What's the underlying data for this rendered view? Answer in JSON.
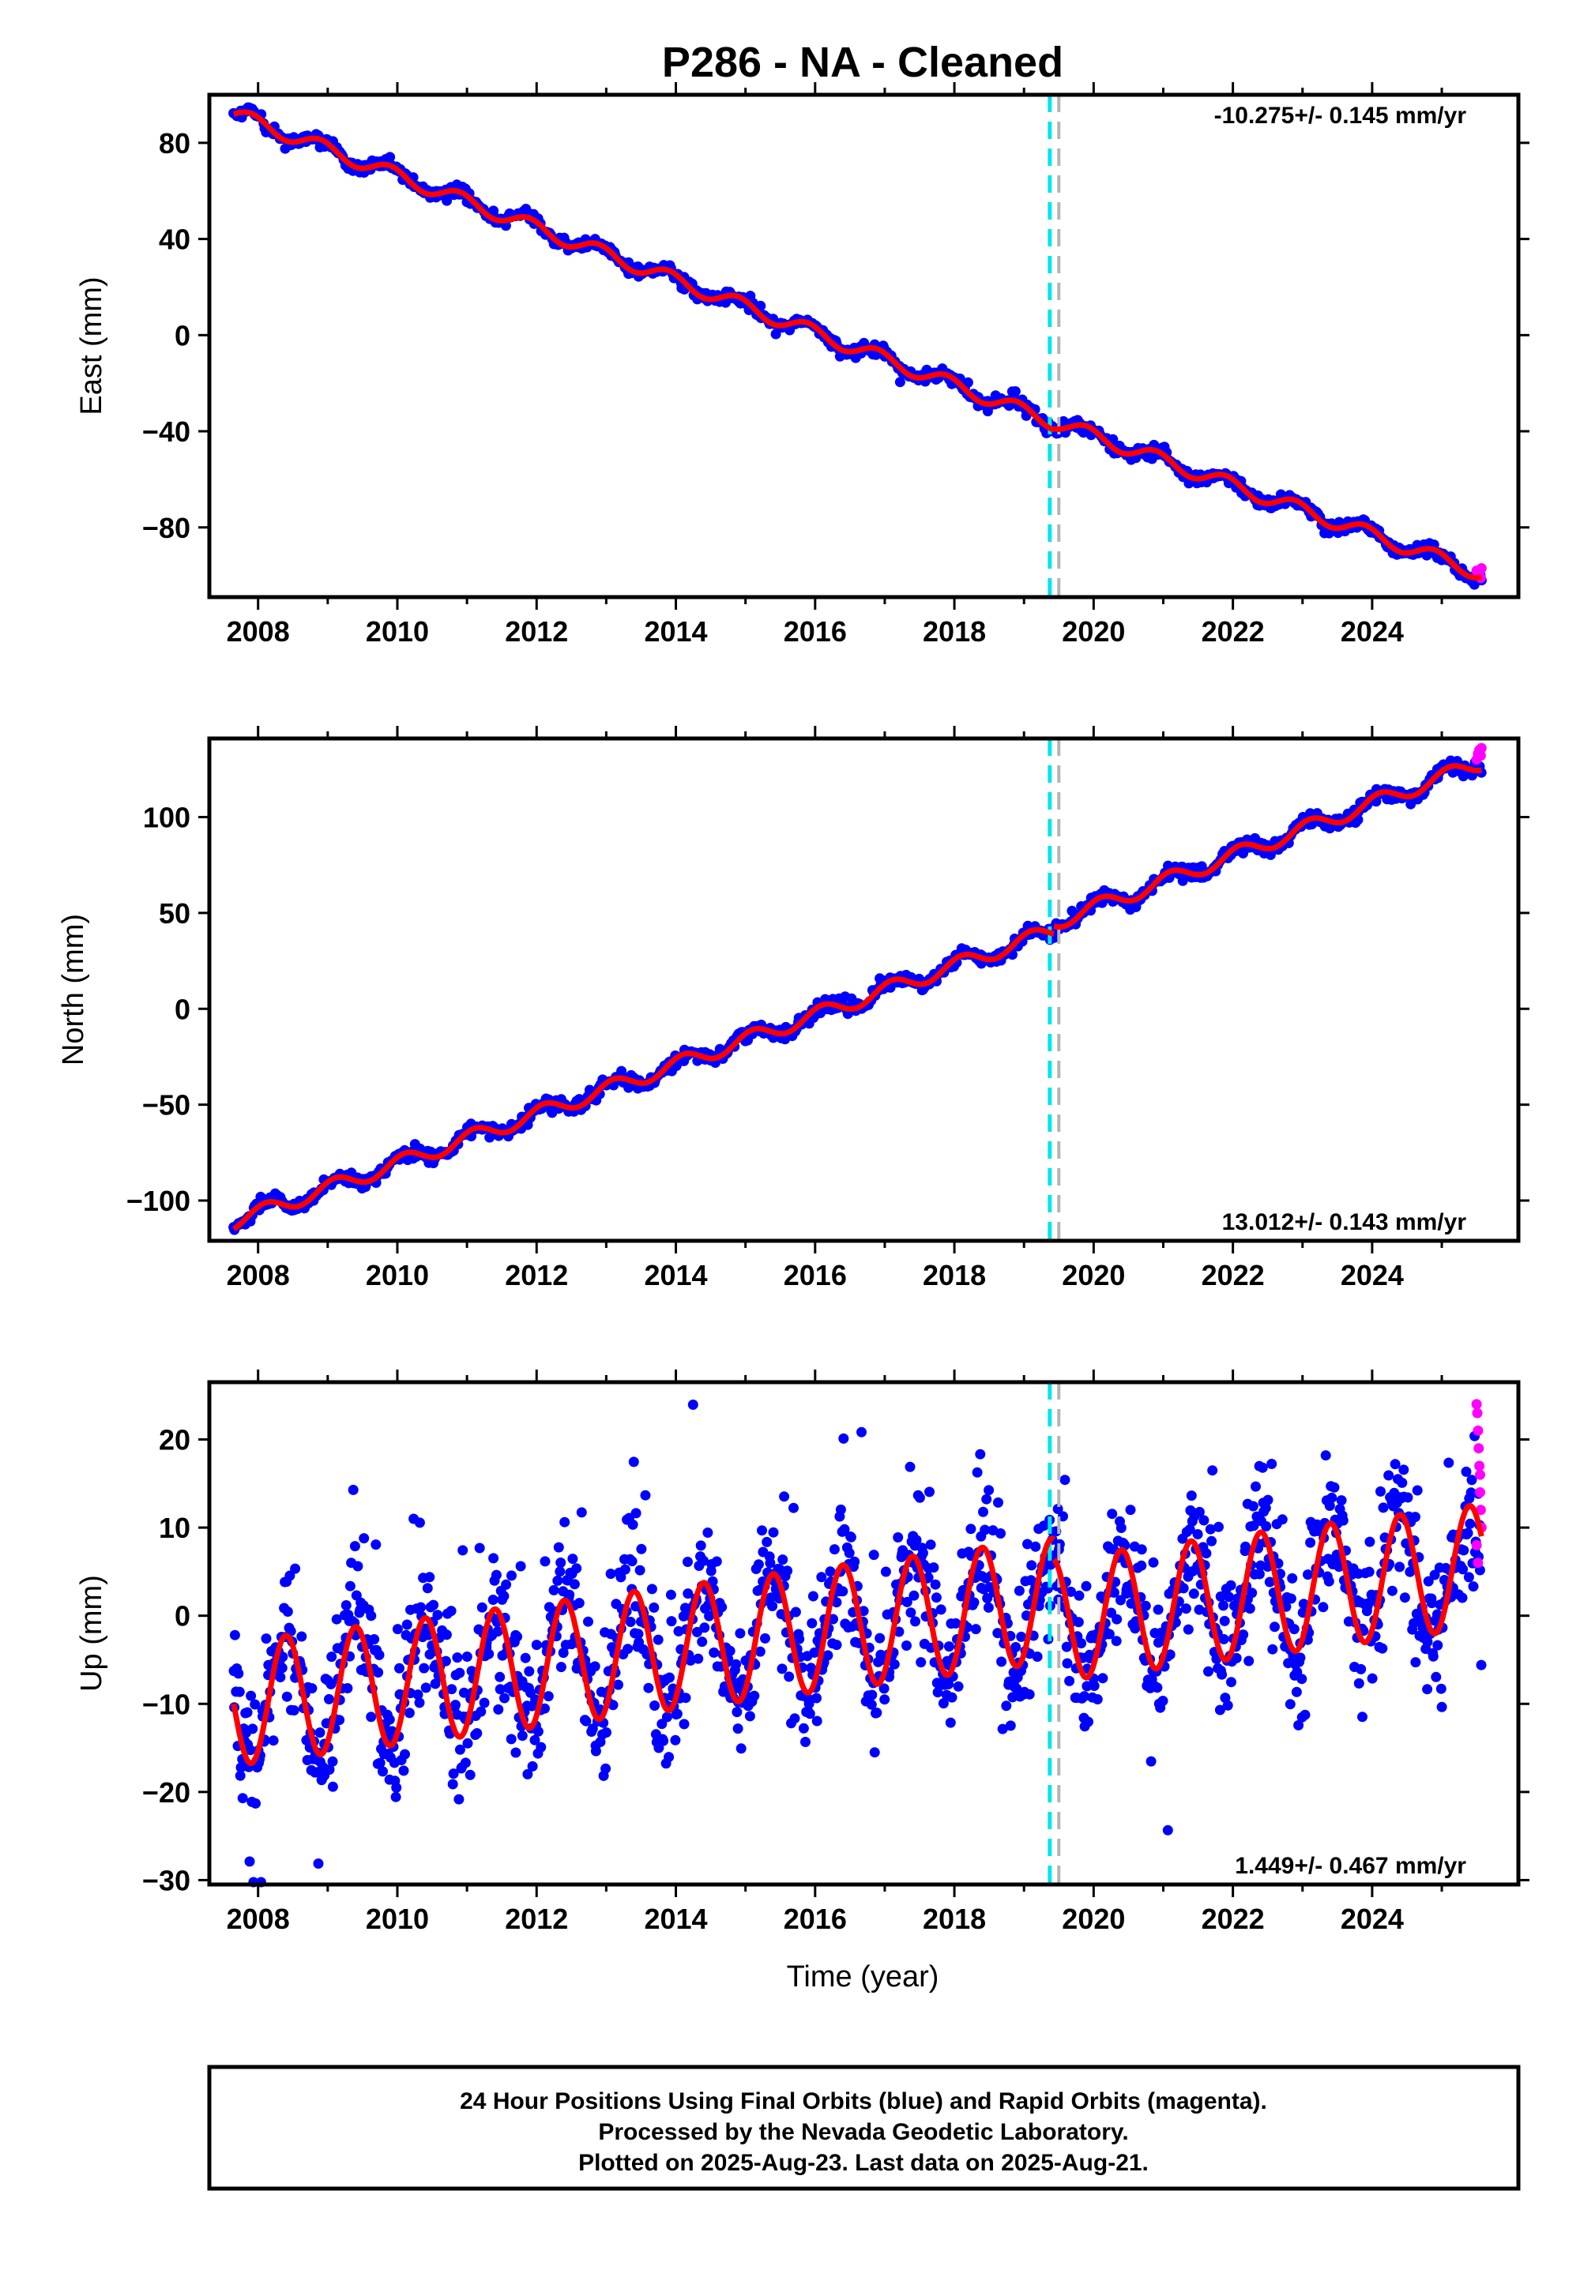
{
  "title": "P286  - NA - Cleaned",
  "xlabel": "Time (year)",
  "x_ticks": [
    "2008",
    "2010",
    "2012",
    "2014",
    "2016",
    "2018",
    "2020",
    "2022",
    "2024"
  ],
  "colors": {
    "final_orbits": "#0000ff",
    "rapid_orbits": "#ff00ff",
    "model_fit": "#ff0000",
    "event_cyan": "#00e5ee",
    "event_gray": "#b4b4b4"
  },
  "footer": {
    "line1": "24 Hour Positions Using Final Orbits (blue) and Rapid Orbits (magenta).",
    "line2": "Processed by the Nevada Geodetic Laboratory.",
    "line3": "Plotted on 2025-Aug-23. Last data on 2025-Aug-21."
  },
  "chart_data": [
    {
      "type": "scatter",
      "component": "east",
      "ylabel": "East (mm)",
      "rate_label": "-10.275+/- 0.145 mm/yr",
      "rate_position": "top-right",
      "xlim": [
        2007.3,
        2026.1
      ],
      "ylim": [
        -109,
        100
      ],
      "y_ticks": [
        "80",
        "40",
        "0",
        "−40",
        "−80"
      ],
      "y_tick_values": [
        80,
        40,
        0,
        -40,
        -80
      ],
      "x_start": 2007.65,
      "x_end": 2025.57,
      "step": 0.02,
      "seasonal": {
        "amplitude": 3.0,
        "phase": 0.5
      },
      "segments": [
        {
          "x0": 2007.65,
          "x1": 2019.43,
          "y0": 92,
          "rate": -10.9
        },
        {
          "x0": 2019.43,
          "x1": 2025.57,
          "y0": -36,
          "rate": -10.3
        }
      ],
      "noise": 1.4,
      "outlier_scale": 1.0,
      "rapid": {
        "x": [
          2025.5,
          2025.52,
          2025.54,
          2025.56,
          2025.57
        ],
        "y": [
          -98,
          -100,
          -99,
          -101,
          -97
        ]
      },
      "event_lines": [
        2019.37,
        2019.5
      ]
    },
    {
      "type": "scatter",
      "component": "north",
      "ylabel": "North (mm)",
      "rate_label": "13.012+/- 0.143 mm/yr",
      "rate_position": "bottom-right",
      "xlim": [
        2007.3,
        2026.1
      ],
      "ylim": [
        -121,
        141
      ],
      "y_ticks": [
        "100",
        "50",
        "0",
        "−50",
        "−100"
      ],
      "y_tick_values": [
        100,
        50,
        0,
        -50,
        -100
      ],
      "x_start": 2007.65,
      "x_end": 2025.57,
      "step": 0.02,
      "seasonal": {
        "amplitude": 4.0,
        "phase": 0.3
      },
      "segments": [
        {
          "x0": 2007.65,
          "x1": 2019.43,
          "y0": -111,
          "rate": 12.9
        },
        {
          "x0": 2019.43,
          "x1": 2025.57,
          "y0": 45,
          "rate": 13.6
        }
      ],
      "noise": 1.8,
      "outlier_scale": 1.0,
      "rapid": {
        "x": [
          2025.5,
          2025.52,
          2025.54,
          2025.56,
          2025.57
        ],
        "y": [
          130,
          133,
          135,
          132,
          136
        ]
      },
      "event_lines": [
        2019.37,
        2019.5
      ]
    },
    {
      "type": "scatter",
      "component": "up",
      "ylabel": "Up (mm)",
      "rate_label": "1.449+/- 0.467 mm/yr",
      "rate_position": "bottom-right",
      "xlim": [
        2007.3,
        2026.1
      ],
      "ylim": [
        -30.5,
        26.5
      ],
      "y_ticks": [
        "20",
        "10",
        "0",
        "−10",
        "−20",
        "−30"
      ],
      "y_tick_values": [
        20,
        10,
        0,
        -10,
        -20,
        -30
      ],
      "x_start": 2007.65,
      "x_end": 2025.57,
      "step": 0.012,
      "seasonal": {
        "amplitude": 7.0,
        "phase": 0.0
      },
      "segments": [
        {
          "x0": 2007.65,
          "x1": 2019.43,
          "y0": -10,
          "rate": 1.0
        },
        {
          "x0": 2019.43,
          "x1": 2025.57,
          "y0": -0.5,
          "rate": 1.0
        }
      ],
      "noise": 4.0,
      "outlier_scale": 2.6,
      "rapid": {
        "x": [
          2025.5,
          2025.51,
          2025.52,
          2025.53,
          2025.54,
          2025.55,
          2025.56,
          2025.57,
          2025.5,
          2025.52,
          2025.55
        ],
        "y": [
          24,
          23,
          21,
          19,
          17,
          14,
          12,
          10,
          8,
          6,
          16
        ]
      },
      "event_lines": [
        2019.37,
        2019.5
      ]
    }
  ]
}
